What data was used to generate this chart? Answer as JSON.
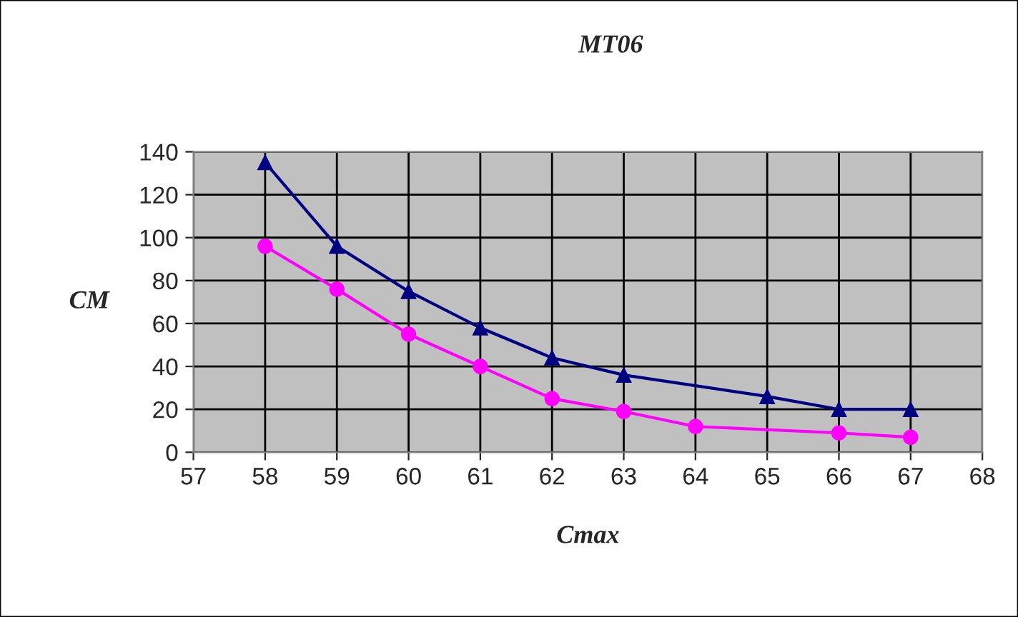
{
  "chart_data": {
    "type": "line",
    "title": "MT06",
    "xlabel": "Cmax",
    "ylabel": "CM",
    "series": [
      {
        "color": "#000080",
        "marker": "triangle",
        "x": [
          58,
          59,
          60,
          61,
          62,
          63,
          65,
          66,
          67
        ],
        "values": [
          135,
          96,
          75,
          58,
          44,
          36,
          26,
          20,
          20
        ]
      },
      {
        "color": "#ff00ff",
        "marker": "circle",
        "x": [
          58,
          59,
          60,
          61,
          62,
          63,
          64,
          66,
          67
        ],
        "values": [
          96,
          76,
          55,
          40,
          25,
          19,
          12,
          9,
          7
        ]
      }
    ],
    "xlim": [
      57,
      68
    ],
    "xticks": [
      57,
      58,
      59,
      60,
      61,
      62,
      63,
      64,
      65,
      66,
      67,
      68
    ],
    "ylim": [
      0,
      140
    ],
    "yticks": [
      0,
      20,
      40,
      60,
      80,
      100,
      120,
      140
    ],
    "grid": true,
    "legend": false
  }
}
